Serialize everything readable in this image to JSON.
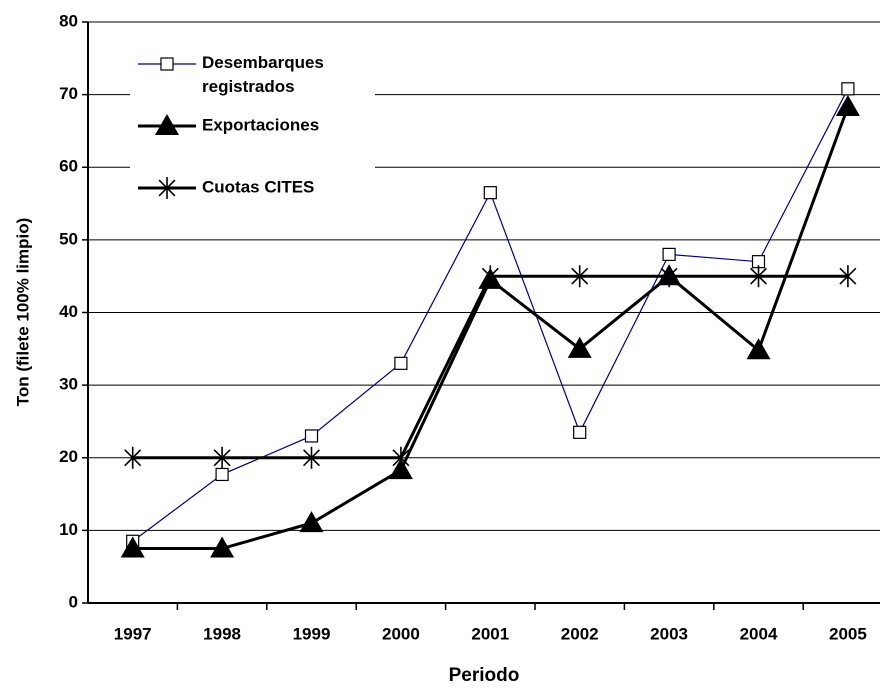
{
  "chart_data": {
    "type": "line",
    "x_label": "Periodo",
    "y_label": "Ton (filete 100% limpio)",
    "categories": [
      "1997",
      "1998",
      "1999",
      "2000",
      "2001",
      "2002",
      "2003",
      "2004",
      "2005"
    ],
    "series": [
      {
        "name": "Desembarques registrados",
        "color": "#000080",
        "marker": "square",
        "values": [
          8.5,
          17.7,
          23,
          33,
          56.5,
          23.5,
          48,
          47,
          70.8
        ]
      },
      {
        "name": "Exportaciones",
        "color": "#000000",
        "marker": "triangle",
        "values": [
          7.5,
          7.5,
          11,
          18.3,
          44.5,
          35,
          45,
          34.8,
          68.3
        ]
      },
      {
        "name": "Cuotas CITES",
        "color": "#000000",
        "marker": "star",
        "values": [
          20,
          20,
          20,
          20,
          45,
          45,
          45,
          45,
          45
        ]
      }
    ],
    "ylim": [
      0,
      80
    ],
    "yticks": [
      0,
      10,
      20,
      30,
      40,
      50,
      60,
      70,
      80
    ],
    "grid": true,
    "legend": "upper left"
  }
}
